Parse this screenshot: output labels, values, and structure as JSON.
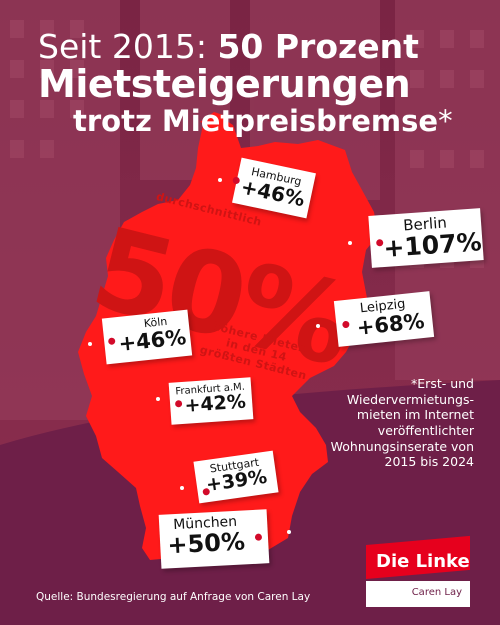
{
  "headline": {
    "line1_light": "Seit 2015:",
    "line1_bold": "50 Prozent",
    "line2": "Mietsteigerungen",
    "line3": "trotz Mietpreisbremse",
    "line3_mark": "*"
  },
  "center_stat": {
    "top": "durchschnittlich",
    "value": "50%",
    "bottom_line1": "höhere Mieten",
    "bottom_line2": "in den 14",
    "bottom_line3": "größten Städten"
  },
  "cities": [
    {
      "name": "Hamburg",
      "change": "+46%"
    },
    {
      "name": "Berlin",
      "change": "+107%"
    },
    {
      "name": "Köln",
      "change": "+46%"
    },
    {
      "name": "Leipzig",
      "change": "+68%"
    },
    {
      "name": "Frankfurt a.M.",
      "change": "+42%"
    },
    {
      "name": "Stuttgart",
      "change": "+39%"
    },
    {
      "name": "München",
      "change": "+50%"
    }
  ],
  "footnote": "*Erst- und Wiedervermietungs-mieten im Internet veröffentlichter Wohnungsinserate von 2015 bis 2024",
  "source": "Quelle: Bundesregierung auf Anfrage von Caren Lay",
  "logo": {
    "brand": "Die Linke",
    "person": "Caren Lay"
  },
  "colors": {
    "map_red": "#ff1a1a",
    "bg_purple": "#6e1f48",
    "brand_red": "#e6001d",
    "bg_photo": "#8c2a4e"
  }
}
